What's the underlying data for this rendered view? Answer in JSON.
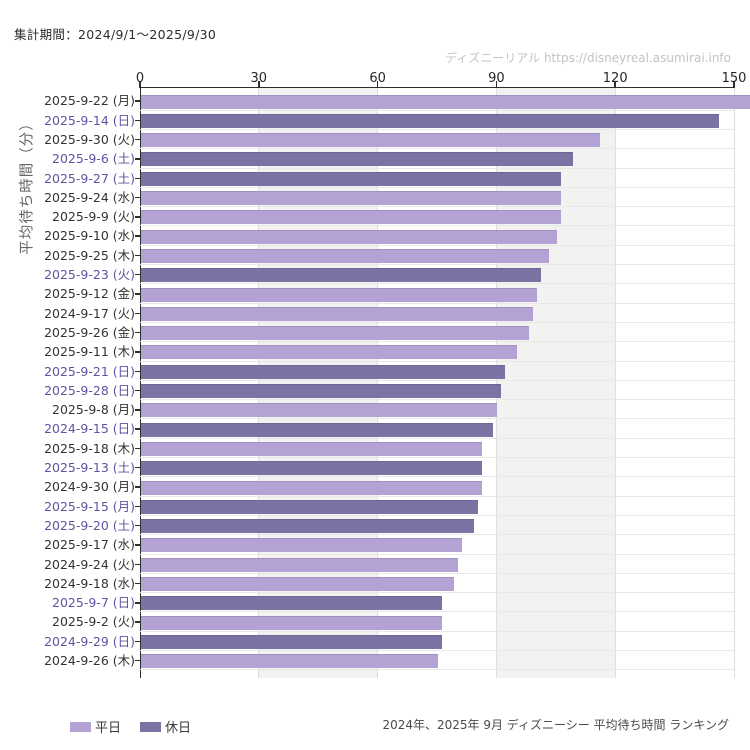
{
  "page": {
    "title": "集計期間：2024/9/1～2025/9/30"
  },
  "watermark": {
    "text": "ディズニーリアル https://disneyreal.asumirai.info"
  },
  "footer": {
    "caption": "2024年、2025年 9月 ディズニーシー 平均待ち時間 ランキング"
  },
  "legend": [
    {
      "label": "平日",
      "type": "weekday"
    },
    {
      "label": "休日",
      "type": "holiday"
    }
  ],
  "colors": {
    "weekday_bar": "#b4a2d4",
    "holiday_bar": "#7a74a4",
    "holiday_label_text": "#5c55a2",
    "weekday_label_text": "#333333"
  },
  "chart_data": {
    "type": "bar",
    "orientation": "horizontal",
    "title": "2024年、2025年 9月 ディズニーシー 平均待ち時間 ランキング",
    "xlabel": "",
    "ylabel": "平均待ち時間（分）",
    "x_ticks": [
      0,
      30,
      60,
      90,
      120,
      150
    ],
    "xlim": [
      0,
      154
    ],
    "grid": true,
    "shaded_bands": [
      [
        30,
        60
      ],
      [
        90,
        120
      ]
    ],
    "legend_position": "bottom-left",
    "bars": [
      {
        "label": "2025-9-22 (月)",
        "value": 154,
        "day_type": "平日"
      },
      {
        "label": "2025-9-14 (日)",
        "value": 146,
        "day_type": "休日"
      },
      {
        "label": "2025-9-30 (火)",
        "value": 116,
        "day_type": "平日"
      },
      {
        "label": "2025-9-6 (土)",
        "value": 109,
        "day_type": "休日"
      },
      {
        "label": "2025-9-27 (土)",
        "value": 106,
        "day_type": "休日"
      },
      {
        "label": "2025-9-24 (水)",
        "value": 106,
        "day_type": "平日"
      },
      {
        "label": "2025-9-9 (火)",
        "value": 106,
        "day_type": "平日"
      },
      {
        "label": "2025-9-10 (水)",
        "value": 105,
        "day_type": "平日"
      },
      {
        "label": "2025-9-25 (木)",
        "value": 103,
        "day_type": "平日"
      },
      {
        "label": "2025-9-23 (火)",
        "value": 101,
        "day_type": "休日"
      },
      {
        "label": "2025-9-12 (金)",
        "value": 100,
        "day_type": "平日"
      },
      {
        "label": "2024-9-17 (火)",
        "value": 99,
        "day_type": "平日"
      },
      {
        "label": "2025-9-26 (金)",
        "value": 98,
        "day_type": "平日"
      },
      {
        "label": "2025-9-11 (木)",
        "value": 95,
        "day_type": "平日"
      },
      {
        "label": "2025-9-21 (日)",
        "value": 92,
        "day_type": "休日"
      },
      {
        "label": "2025-9-28 (日)",
        "value": 91,
        "day_type": "休日"
      },
      {
        "label": "2025-9-8 (月)",
        "value": 90,
        "day_type": "平日"
      },
      {
        "label": "2024-9-15 (日)",
        "value": 89,
        "day_type": "休日"
      },
      {
        "label": "2025-9-18 (木)",
        "value": 86,
        "day_type": "平日"
      },
      {
        "label": "2025-9-13 (土)",
        "value": 86,
        "day_type": "休日"
      },
      {
        "label": "2024-9-30 (月)",
        "value": 86,
        "day_type": "平日"
      },
      {
        "label": "2025-9-15 (月)",
        "value": 85,
        "day_type": "休日"
      },
      {
        "label": "2025-9-20 (土)",
        "value": 84,
        "day_type": "休日"
      },
      {
        "label": "2025-9-17 (水)",
        "value": 81,
        "day_type": "平日"
      },
      {
        "label": "2024-9-24 (火)",
        "value": 80,
        "day_type": "平日"
      },
      {
        "label": "2024-9-18 (水)",
        "value": 79,
        "day_type": "平日"
      },
      {
        "label": "2025-9-7 (日)",
        "value": 76,
        "day_type": "休日"
      },
      {
        "label": "2025-9-2 (火)",
        "value": 76,
        "day_type": "平日"
      },
      {
        "label": "2024-9-29 (日)",
        "value": 76,
        "day_type": "休日"
      },
      {
        "label": "2024-9-26 (木)",
        "value": 75,
        "day_type": "平日"
      }
    ]
  }
}
